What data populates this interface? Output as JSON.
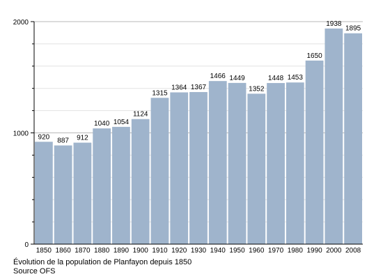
{
  "chart_data": {
    "type": "bar",
    "categories": [
      "1850",
      "1860",
      "1870",
      "1880",
      "1890",
      "1900",
      "1910",
      "1920",
      "1930",
      "1940",
      "1950",
      "1960",
      "1970",
      "1980",
      "1990",
      "2000",
      "2008"
    ],
    "values": [
      920,
      887,
      912,
      1040,
      1054,
      1124,
      1315,
      1364,
      1367,
      1466,
      1449,
      1352,
      1448,
      1453,
      1650,
      1938,
      1895
    ],
    "value_labels": [
      "920",
      "887",
      "912",
      "1040",
      "1054",
      "1124",
      "1315",
      "1364",
      "1367",
      "1466",
      "1449",
      "1352",
      "1448",
      "1453",
      "1650",
      "1938",
      "1895"
    ],
    "yticks": [
      "0",
      "1000",
      "2000"
    ],
    "ylim": [
      0,
      2000
    ],
    "grid": true,
    "bar_color": "#9fb4cc",
    "caption": [
      "Évolution de la population de Planfayon depuis 1850",
      "Source OFS"
    ]
  }
}
